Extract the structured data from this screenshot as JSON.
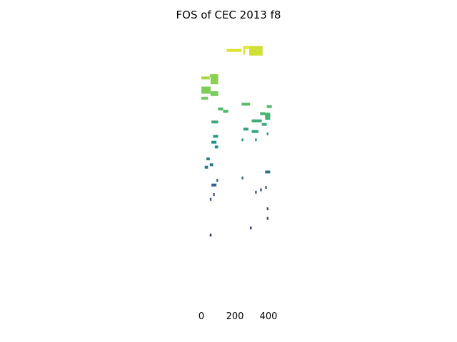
{
  "chart_data": {
    "type": "heatmap",
    "title": "FOS of CEC 2013 f8",
    "xlabel": "",
    "ylabel": "",
    "x_ticks": [
      0,
      200,
      400
    ],
    "x_tick_labels": [
      "0",
      "200",
      "400"
    ],
    "xlim": [
      0,
      400
    ],
    "ylim": [
      0,
      1
    ],
    "grid": false,
    "colormap": "viridis",
    "color_range": [
      "#440154",
      "#fde725"
    ],
    "y_axis_visible": false,
    "cells": [
      {
        "x": 150,
        "y": 0.956,
        "w": 90,
        "v": 0.95
      },
      {
        "x": 250,
        "y": 0.968,
        "w": 100,
        "v": 0.97
      },
      {
        "x": 250,
        "y": 0.945,
        "w": 10,
        "h": 0.03,
        "v": 0.94
      },
      {
        "x": 285,
        "y": 0.94,
        "w": 80,
        "h": 0.04,
        "v": 0.93
      },
      {
        "x": 0,
        "y": 0.84,
        "w": 50,
        "v": 0.86
      },
      {
        "x": 50,
        "y": 0.85,
        "w": 50,
        "v": 0.84
      },
      {
        "x": 55,
        "y": 0.82,
        "w": 45,
        "h": 0.04,
        "v": 0.82
      },
      {
        "x": 0,
        "y": 0.78,
        "w": 55,
        "h": 0.03,
        "v": 0.8
      },
      {
        "x": 55,
        "y": 0.77,
        "w": 45,
        "h": 0.02,
        "v": 0.79
      },
      {
        "x": 0,
        "y": 0.755,
        "w": 40,
        "v": 0.78
      },
      {
        "x": 240,
        "y": 0.73,
        "w": 50,
        "v": 0.7
      },
      {
        "x": 390,
        "y": 0.72,
        "w": 30,
        "v": 0.69
      },
      {
        "x": 100,
        "y": 0.71,
        "w": 30,
        "v": 0.68
      },
      {
        "x": 130,
        "y": 0.7,
        "w": 30,
        "v": 0.67
      },
      {
        "x": 350,
        "y": 0.69,
        "w": 30,
        "v": 0.66
      },
      {
        "x": 380,
        "y": 0.67,
        "w": 30,
        "h": 0.03,
        "v": 0.65
      },
      {
        "x": 300,
        "y": 0.66,
        "w": 60,
        "v": 0.62
      },
      {
        "x": 60,
        "y": 0.655,
        "w": 40,
        "v": 0.6
      },
      {
        "x": 360,
        "y": 0.645,
        "w": 30,
        "v": 0.6
      },
      {
        "x": 250,
        "y": 0.625,
        "w": 30,
        "v": 0.58
      },
      {
        "x": 300,
        "y": 0.615,
        "w": 40,
        "v": 0.57
      },
      {
        "x": 390,
        "y": 0.605,
        "w": 10,
        "v": 0.56
      },
      {
        "x": 70,
        "y": 0.595,
        "w": 30,
        "v": 0.54
      },
      {
        "x": 240,
        "y": 0.58,
        "w": 10,
        "v": 0.53
      },
      {
        "x": 320,
        "y": 0.58,
        "w": 10,
        "v": 0.52
      },
      {
        "x": 60,
        "y": 0.57,
        "w": 30,
        "v": 0.5
      },
      {
        "x": 80,
        "y": 0.55,
        "w": 20,
        "v": 0.48
      },
      {
        "x": 30,
        "y": 0.5,
        "w": 20,
        "v": 0.42
      },
      {
        "x": 50,
        "y": 0.475,
        "w": 20,
        "v": 0.4
      },
      {
        "x": 20,
        "y": 0.465,
        "w": 20,
        "v": 0.39
      },
      {
        "x": 380,
        "y": 0.445,
        "w": 30,
        "v": 0.37
      },
      {
        "x": 240,
        "y": 0.42,
        "w": 10,
        "v": 0.34
      },
      {
        "x": 90,
        "y": 0.41,
        "w": 10,
        "v": 0.33
      },
      {
        "x": 60,
        "y": 0.39,
        "w": 30,
        "v": 0.31
      },
      {
        "x": 380,
        "y": 0.38,
        "w": 10,
        "v": 0.3
      },
      {
        "x": 350,
        "y": 0.37,
        "w": 10,
        "v": 0.29
      },
      {
        "x": 320,
        "y": 0.36,
        "w": 10,
        "v": 0.28
      },
      {
        "x": 70,
        "y": 0.35,
        "w": 10,
        "v": 0.27
      },
      {
        "x": 50,
        "y": 0.33,
        "w": 10,
        "v": 0.26
      },
      {
        "x": 390,
        "y": 0.29,
        "w": 10,
        "v": 0.22
      },
      {
        "x": 390,
        "y": 0.25,
        "w": 10,
        "v": 0.19
      },
      {
        "x": 290,
        "y": 0.21,
        "w": 10,
        "v": 0.15
      },
      {
        "x": 50,
        "y": 0.18,
        "w": 10,
        "v": 0.12
      }
    ]
  }
}
